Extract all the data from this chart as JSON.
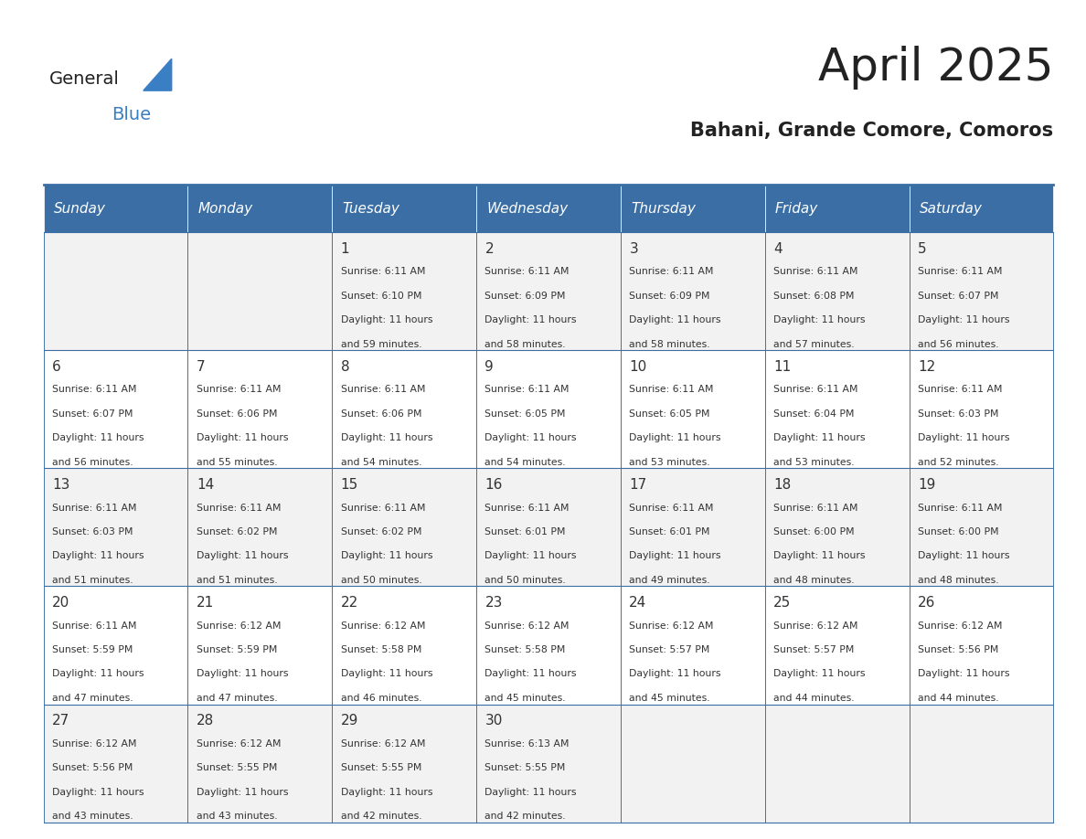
{
  "title": "April 2025",
  "subtitle": "Bahani, Grande Comore, Comoros",
  "days_of_week": [
    "Sunday",
    "Monday",
    "Tuesday",
    "Wednesday",
    "Thursday",
    "Friday",
    "Saturday"
  ],
  "header_bg": "#3A6EA5",
  "header_text": "#FFFFFF",
  "cell_bg_light": "#F2F2F2",
  "cell_bg_white": "#FFFFFF",
  "grid_line_color": "#3A6EA5",
  "title_color": "#222222",
  "subtitle_color": "#222222",
  "text_color": "#333333",
  "logo_general_color": "#222222",
  "logo_blue_color": "#3A7EC4",
  "calendar_data": [
    {
      "day": 1,
      "col": 2,
      "row": 0,
      "sunrise": "6:11 AM",
      "sunset": "6:10 PM",
      "daylight": "11 hours and 59 minutes."
    },
    {
      "day": 2,
      "col": 3,
      "row": 0,
      "sunrise": "6:11 AM",
      "sunset": "6:09 PM",
      "daylight": "11 hours and 58 minutes."
    },
    {
      "day": 3,
      "col": 4,
      "row": 0,
      "sunrise": "6:11 AM",
      "sunset": "6:09 PM",
      "daylight": "11 hours and 58 minutes."
    },
    {
      "day": 4,
      "col": 5,
      "row": 0,
      "sunrise": "6:11 AM",
      "sunset": "6:08 PM",
      "daylight": "11 hours and 57 minutes."
    },
    {
      "day": 5,
      "col": 6,
      "row": 0,
      "sunrise": "6:11 AM",
      "sunset": "6:07 PM",
      "daylight": "11 hours and 56 minutes."
    },
    {
      "day": 6,
      "col": 0,
      "row": 1,
      "sunrise": "6:11 AM",
      "sunset": "6:07 PM",
      "daylight": "11 hours and 56 minutes."
    },
    {
      "day": 7,
      "col": 1,
      "row": 1,
      "sunrise": "6:11 AM",
      "sunset": "6:06 PM",
      "daylight": "11 hours and 55 minutes."
    },
    {
      "day": 8,
      "col": 2,
      "row": 1,
      "sunrise": "6:11 AM",
      "sunset": "6:06 PM",
      "daylight": "11 hours and 54 minutes."
    },
    {
      "day": 9,
      "col": 3,
      "row": 1,
      "sunrise": "6:11 AM",
      "sunset": "6:05 PM",
      "daylight": "11 hours and 54 minutes."
    },
    {
      "day": 10,
      "col": 4,
      "row": 1,
      "sunrise": "6:11 AM",
      "sunset": "6:05 PM",
      "daylight": "11 hours and 53 minutes."
    },
    {
      "day": 11,
      "col": 5,
      "row": 1,
      "sunrise": "6:11 AM",
      "sunset": "6:04 PM",
      "daylight": "11 hours and 53 minutes."
    },
    {
      "day": 12,
      "col": 6,
      "row": 1,
      "sunrise": "6:11 AM",
      "sunset": "6:03 PM",
      "daylight": "11 hours and 52 minutes."
    },
    {
      "day": 13,
      "col": 0,
      "row": 2,
      "sunrise": "6:11 AM",
      "sunset": "6:03 PM",
      "daylight": "11 hours and 51 minutes."
    },
    {
      "day": 14,
      "col": 1,
      "row": 2,
      "sunrise": "6:11 AM",
      "sunset": "6:02 PM",
      "daylight": "11 hours and 51 minutes."
    },
    {
      "day": 15,
      "col": 2,
      "row": 2,
      "sunrise": "6:11 AM",
      "sunset": "6:02 PM",
      "daylight": "11 hours and 50 minutes."
    },
    {
      "day": 16,
      "col": 3,
      "row": 2,
      "sunrise": "6:11 AM",
      "sunset": "6:01 PM",
      "daylight": "11 hours and 50 minutes."
    },
    {
      "day": 17,
      "col": 4,
      "row": 2,
      "sunrise": "6:11 AM",
      "sunset": "6:01 PM",
      "daylight": "11 hours and 49 minutes."
    },
    {
      "day": 18,
      "col": 5,
      "row": 2,
      "sunrise": "6:11 AM",
      "sunset": "6:00 PM",
      "daylight": "11 hours and 48 minutes."
    },
    {
      "day": 19,
      "col": 6,
      "row": 2,
      "sunrise": "6:11 AM",
      "sunset": "6:00 PM",
      "daylight": "11 hours and 48 minutes."
    },
    {
      "day": 20,
      "col": 0,
      "row": 3,
      "sunrise": "6:11 AM",
      "sunset": "5:59 PM",
      "daylight": "11 hours and 47 minutes."
    },
    {
      "day": 21,
      "col": 1,
      "row": 3,
      "sunrise": "6:12 AM",
      "sunset": "5:59 PM",
      "daylight": "11 hours and 47 minutes."
    },
    {
      "day": 22,
      "col": 2,
      "row": 3,
      "sunrise": "6:12 AM",
      "sunset": "5:58 PM",
      "daylight": "11 hours and 46 minutes."
    },
    {
      "day": 23,
      "col": 3,
      "row": 3,
      "sunrise": "6:12 AM",
      "sunset": "5:58 PM",
      "daylight": "11 hours and 45 minutes."
    },
    {
      "day": 24,
      "col": 4,
      "row": 3,
      "sunrise": "6:12 AM",
      "sunset": "5:57 PM",
      "daylight": "11 hours and 45 minutes."
    },
    {
      "day": 25,
      "col": 5,
      "row": 3,
      "sunrise": "6:12 AM",
      "sunset": "5:57 PM",
      "daylight": "11 hours and 44 minutes."
    },
    {
      "day": 26,
      "col": 6,
      "row": 3,
      "sunrise": "6:12 AM",
      "sunset": "5:56 PM",
      "daylight": "11 hours and 44 minutes."
    },
    {
      "day": 27,
      "col": 0,
      "row": 4,
      "sunrise": "6:12 AM",
      "sunset": "5:56 PM",
      "daylight": "11 hours and 43 minutes."
    },
    {
      "day": 28,
      "col": 1,
      "row": 4,
      "sunrise": "6:12 AM",
      "sunset": "5:55 PM",
      "daylight": "11 hours and 43 minutes."
    },
    {
      "day": 29,
      "col": 2,
      "row": 4,
      "sunrise": "6:12 AM",
      "sunset": "5:55 PM",
      "daylight": "11 hours and 42 minutes."
    },
    {
      "day": 30,
      "col": 3,
      "row": 4,
      "sunrise": "6:13 AM",
      "sunset": "5:55 PM",
      "daylight": "11 hours and 42 minutes."
    }
  ]
}
